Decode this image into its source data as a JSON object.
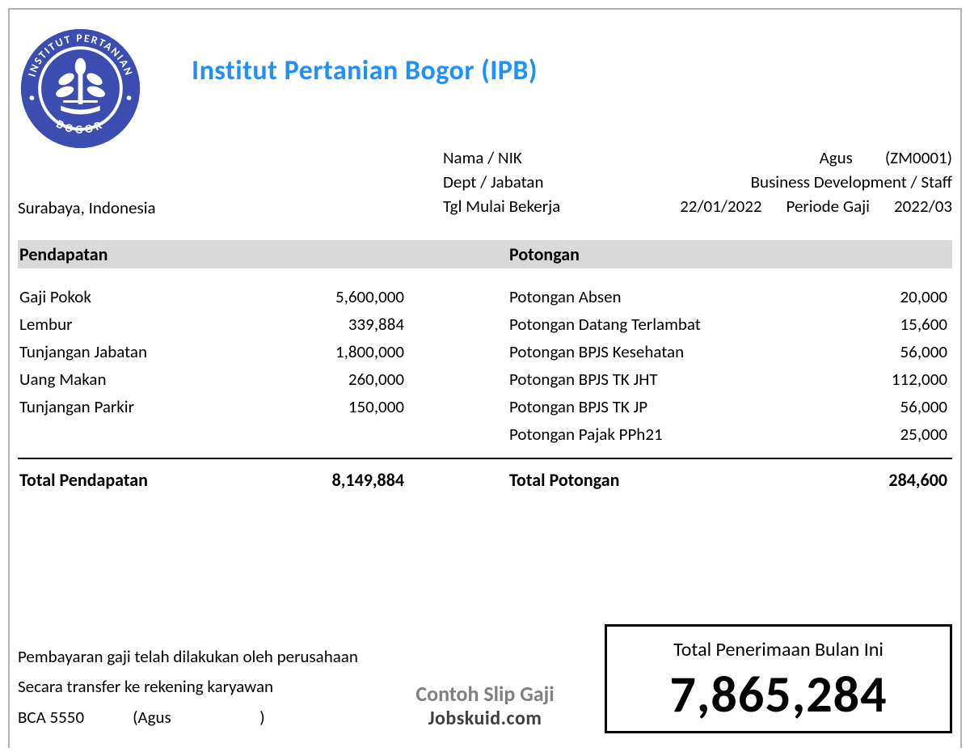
{
  "org": {
    "title": "Institut Pertanian Bogor (IPB)",
    "title_color": "#1e90ff",
    "logo_color": "#3b4db0",
    "logo_text_top": "INSTITUT PERTANIAN",
    "logo_text_bottom": "BOGOR",
    "location": "Surabaya, Indonesia"
  },
  "meta": {
    "name_label": "Nama / NIK",
    "name": "Agus",
    "nik": "(ZM0001)",
    "dept_label": "Dept / Jabatan",
    "dept": "Business Development / Staff",
    "start_label": "Tgl Mulai Bekerja",
    "start_date": "22/01/2022",
    "period_label": "Periode Gaji",
    "period": "2022/03"
  },
  "sections": {
    "income_header": "Pendapatan",
    "deduction_header": "Potongan",
    "income_total_label": "Total Pendapatan",
    "income_total": "8,149,884",
    "deduction_total_label": "Total Potongan",
    "deduction_total": "284,600"
  },
  "income": [
    {
      "label": "Gaji Pokok",
      "amount": "5,600,000"
    },
    {
      "label": "Lembur",
      "amount": "339,884"
    },
    {
      "label": "Tunjangan Jabatan",
      "amount": "1,800,000"
    },
    {
      "label": "Uang Makan",
      "amount": "260,000"
    },
    {
      "label": "Tunjangan Parkir",
      "amount": "150,000"
    }
  ],
  "deductions": [
    {
      "label": "Potongan Absen",
      "amount": "20,000"
    },
    {
      "label": "Potongan Datang Terlambat",
      "amount": "15,600"
    },
    {
      "label": "Potongan BPJS Kesehatan",
      "amount": "56,000"
    },
    {
      "label": "Potongan BPJS TK JHT",
      "amount": "112,000"
    },
    {
      "label": "Potongan BPJS TK JP",
      "amount": "56,000"
    },
    {
      "label": "Potongan Pajak PPh21",
      "amount": "25,000"
    }
  ],
  "payment": {
    "line1": "Pembayaran gaji telah dilakukan oleh perusahaan",
    "line2": "Secara transfer ke rekening karyawan",
    "bank": "BCA 5550",
    "holder": "(Agus",
    "holder_close": ")"
  },
  "net": {
    "label": "Total Penerimaan Bulan Ini",
    "amount": "7,865,284"
  },
  "watermark": {
    "line1": "Contoh Slip Gaji",
    "line2": "Jobskuid.com"
  },
  "style": {
    "header_bg": "#d9d9d9",
    "body_font_size": 21,
    "title_font_size": 34,
    "net_font_size": 64
  }
}
